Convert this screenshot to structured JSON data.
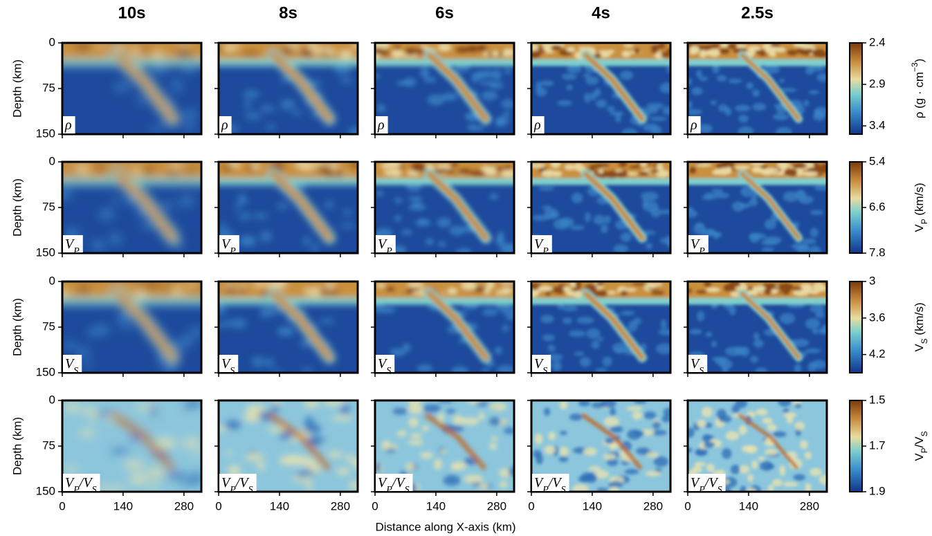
{
  "column_titles": [
    "10s",
    "8s",
    "6s",
    "4s",
    "2.5s"
  ],
  "x_axis": {
    "label": "Distance along X-axis (km)",
    "xlim": [
      0,
      320
    ],
    "xticks": [
      0,
      140,
      280
    ]
  },
  "y_axis": {
    "label": "Depth (km)",
    "ylim": [
      0,
      150
    ],
    "yticks": [
      0,
      75,
      150
    ]
  },
  "rows": [
    {
      "panel_label": [
        {
          "text": "ρ"
        }
      ],
      "colorbar_label": [
        {
          "text": "ρ (g · cm"
        },
        {
          "sup": "−3"
        },
        {
          "text": ")"
        }
      ],
      "clim": [
        2.4,
        3.5
      ],
      "cticks": [
        2.4,
        2.9,
        3.4
      ]
    },
    {
      "panel_label": [
        {
          "text": "V",
          "sub": "P"
        }
      ],
      "colorbar_label": [
        {
          "text": "V",
          "sub": "P"
        },
        {
          "text": " (km/s)"
        }
      ],
      "clim": [
        5.4,
        7.8
      ],
      "cticks": [
        5.4,
        6.6,
        7.8
      ]
    },
    {
      "panel_label": [
        {
          "text": "V",
          "sub": "S"
        }
      ],
      "colorbar_label": [
        {
          "text": "V",
          "sub": "S"
        },
        {
          "text": " (km/s)"
        }
      ],
      "clim": [
        3.0,
        4.5
      ],
      "cticks": [
        3.0,
        3.6,
        4.2
      ]
    },
    {
      "panel_label": [
        {
          "text": "V",
          "sub": "P"
        },
        {
          "text": "/"
        },
        {
          "text": "V",
          "sub": "S"
        }
      ],
      "colorbar_label": [
        {
          "text": "V",
          "sub": "P"
        },
        {
          "text": "/"
        },
        {
          "text": "V",
          "sub": "S"
        }
      ],
      "clim": [
        1.5,
        1.9
      ],
      "cticks": [
        1.5,
        1.7,
        1.9
      ]
    }
  ]
}
